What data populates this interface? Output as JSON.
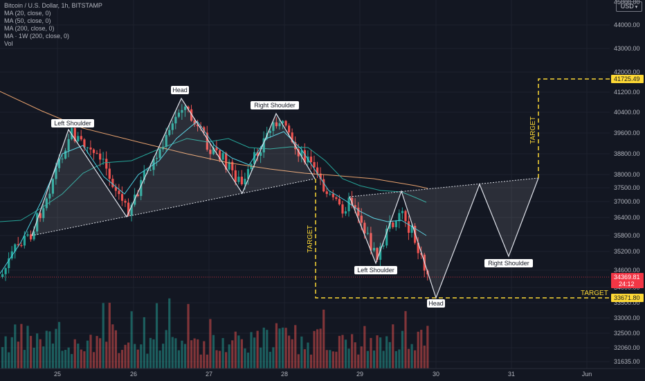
{
  "header": {
    "title": "Bitcoin / U.S. Dollar, 1h, BITSTAMP",
    "indicators": [
      "MA (20, close, 0)",
      "MA (50, close, 0)",
      "MA (200, close, 0)",
      "MA · 1W (200, close, 0)",
      "Vol"
    ]
  },
  "currency_badge": "USD",
  "colors": {
    "background": "#131722",
    "up": "#26a69a",
    "down": "#ef5350",
    "ma20": "#4dd0e1",
    "ma50": "#26a69a",
    "ma200": "#e8a26e",
    "pattern_line": "#e0e3eb",
    "target": "#fdd835",
    "current_price_tag": "#f23645"
  },
  "price_axis": {
    "ticks": [
      "44000.00",
      "43000.00",
      "42000.00",
      "41200.00",
      "40400.00",
      "39600.00",
      "38800.00",
      "38000.00",
      "37500.00",
      "37000.00",
      "36400.00",
      "35800.00",
      "35200.00",
      "34600.00",
      "34000.00",
      "33500.00",
      "33000.00",
      "32500.00",
      "32060.00",
      "31635.00"
    ],
    "top_partial": "45000.00"
  },
  "price_tags": {
    "upper_target": "41725.49",
    "current_price": "34369.81",
    "countdown": "24:12",
    "lower_target": "33671.80"
  },
  "time_axis": [
    "25",
    "26",
    "27",
    "28",
    "29",
    "30",
    "31",
    "Jun"
  ],
  "pattern_labels": {
    "left_shoulder_top": "Left Shoulder",
    "head_top": "Head",
    "right_shoulder_top": "Right Shoulder",
    "left_shoulder_bottom": "Left Shoulder",
    "head_bottom": "Head",
    "right_shoulder_bottom": "Right Shoulder"
  },
  "target_labels": {
    "right_vertical": "TARGET",
    "left_vertical": "TARGET",
    "bottom_right": "TARGET"
  }
}
